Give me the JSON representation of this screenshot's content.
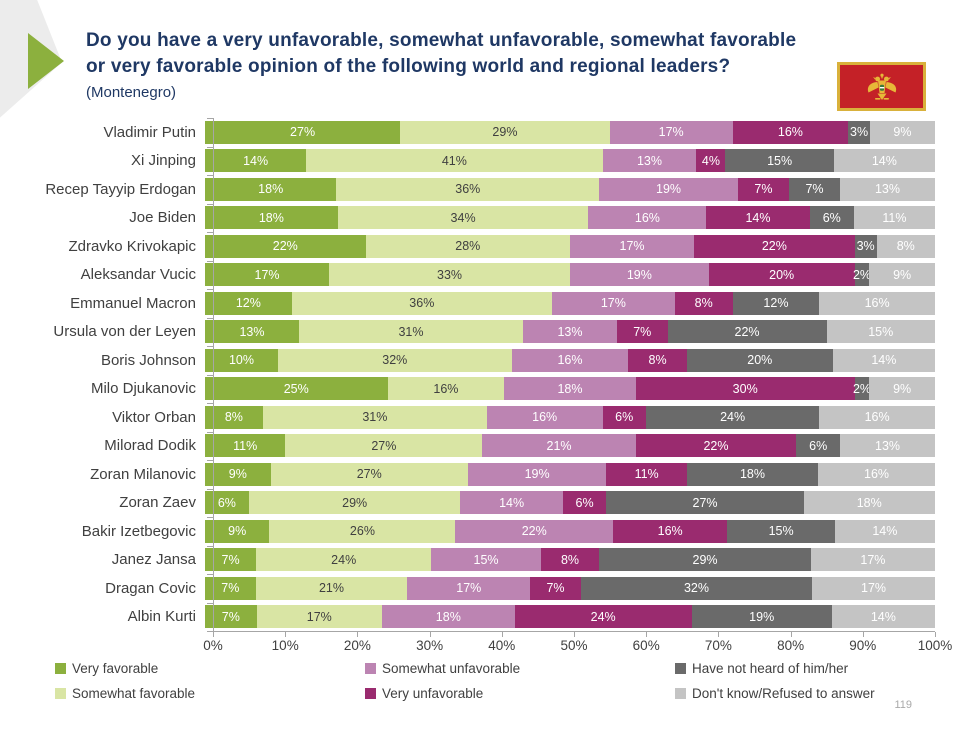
{
  "header": {
    "title_lines": [
      "Do you have a very unfavorable, somewhat unfavorable, somewhat favorable",
      "or very favorable opinion of the following world and regional leaders?"
    ],
    "subtitle": "(Montenegro)"
  },
  "page_number": "119",
  "chart_data": {
    "type": "bar",
    "orientation": "horizontal-stacked",
    "title": "Do you have a very unfavorable, somewhat unfavorable, somewhat favorable or very favorable opinion of the following world and regional leaders? (Montenegro)",
    "categories": [
      "Vladimir Putin",
      "Xi Jinping",
      "Recep Tayyip Erdogan",
      "Joe Biden",
      "Zdravko Krivokapic",
      "Aleksandar Vucic",
      "Emmanuel Macron",
      "Ursula von der Leyen",
      "Boris Johnson",
      "Milo Djukanovic",
      "Viktor Orban",
      "Milorad Dodik",
      "Zoran Milanovic",
      "Zoran Zaev",
      "Bakir Izetbegovic",
      "Janez Jansa",
      "Dragan Covic",
      "Albin Kurti"
    ],
    "series": [
      {
        "name": "Very favorable",
        "color": "#8cb03e",
        "label_color": "#ffffff",
        "values": [
          27,
          14,
          18,
          18,
          22,
          17,
          12,
          13,
          10,
          25,
          8,
          11,
          9,
          6,
          9,
          7,
          7,
          7
        ]
      },
      {
        "name": "Somewhat favorable",
        "color": "#d9e5a4",
        "label_color": "#404040",
        "values": [
          29,
          41,
          36,
          34,
          28,
          33,
          36,
          31,
          32,
          16,
          31,
          27,
          27,
          29,
          26,
          24,
          21,
          17
        ]
      },
      {
        "name": "Somewhat unfavorable",
        "color": "#bc84b2",
        "label_color": "#ffffff",
        "values": [
          17,
          13,
          19,
          16,
          17,
          19,
          17,
          13,
          16,
          18,
          16,
          21,
          19,
          14,
          22,
          15,
          17,
          18
        ]
      },
      {
        "name": "Very unfavorable",
        "color": "#9a2b6f",
        "label_color": "#ffffff",
        "values": [
          16,
          4,
          7,
          14,
          22,
          20,
          8,
          7,
          8,
          30,
          6,
          22,
          11,
          6,
          16,
          8,
          7,
          24
        ]
      },
      {
        "name": "Have not heard of him/her",
        "color": "#6a6a6a",
        "label_color": "#ffffff",
        "values": [
          3,
          15,
          7,
          6,
          3,
          2,
          12,
          22,
          20,
          2,
          24,
          6,
          18,
          27,
          15,
          29,
          32,
          19
        ]
      },
      {
        "name": "Don't know/Refused to answer",
        "color": "#c4c4c4",
        "label_color": "#ffffff",
        "values": [
          9,
          14,
          13,
          11,
          8,
          9,
          16,
          15,
          14,
          9,
          16,
          13,
          16,
          18,
          14,
          17,
          17,
          14
        ]
      }
    ],
    "value_suffix": "%",
    "xlim": [
      0,
      100
    ],
    "x_ticks": [
      "0%",
      "10%",
      "20%",
      "30%",
      "40%",
      "50%",
      "60%",
      "70%",
      "80%",
      "90%",
      "100%"
    ],
    "grid": "off",
    "legend_position": "bottom"
  }
}
